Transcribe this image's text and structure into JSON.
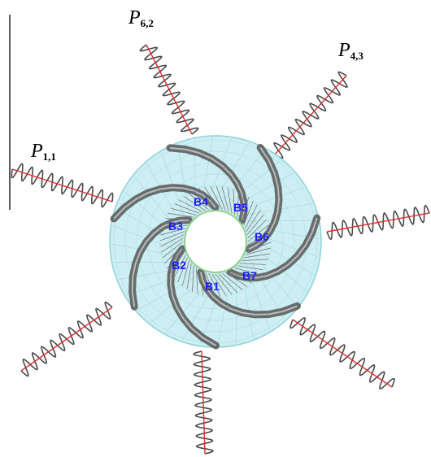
{
  "labels": {
    "p62": {
      "base": "P",
      "sub": "6,2"
    },
    "p43": {
      "base": "P",
      "sub": "4,3"
    },
    "p11": {
      "base": "P",
      "sub": "1,1"
    }
  },
  "blades": [
    "B1",
    "B2",
    "B3",
    "B4",
    "B5",
    "B6",
    "B7"
  ],
  "colors": {
    "spring": "#4a4a4a",
    "spring_axis": "#e03030",
    "disk_fill": "#cdeef2",
    "disk_edge": "#8fd3da",
    "hub_edge": "#8ad08a",
    "vane": "#555555",
    "blade_text": "#1a1aff"
  },
  "springs_count": 7
}
